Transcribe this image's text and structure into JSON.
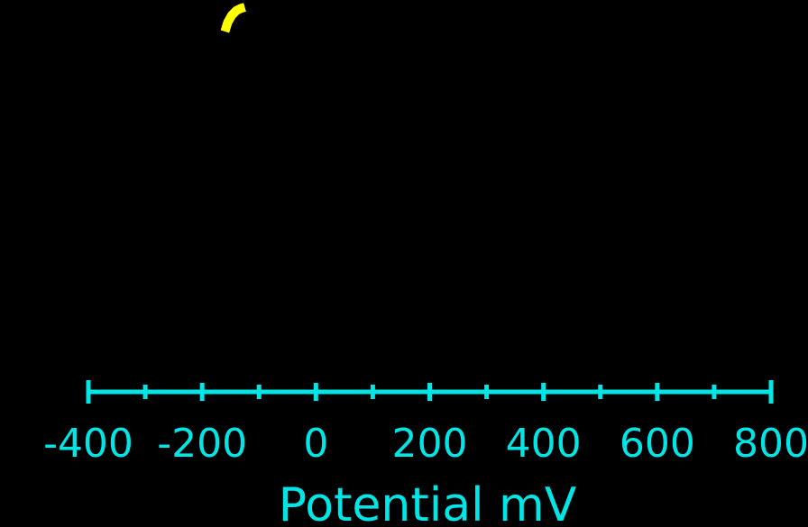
{
  "chart_data": {
    "type": "line",
    "title": "",
    "xlabel": "Potential mV",
    "ylabel": "",
    "xlim": [
      -400,
      800
    ],
    "x_major_ticks": [
      -400,
      -200,
      0,
      200,
      400,
      600,
      800
    ],
    "x_tick_labels": [
      "-400",
      "-200",
      "0",
      "200",
      "400",
      "600",
      "800"
    ],
    "x_minor_ticks": [
      -300,
      -100,
      100,
      300,
      500,
      700
    ],
    "grid": false,
    "legend": "none",
    "series": [
      {
        "color": "#ffff00",
        "points": [
          {
            "x": -160,
            "y": 0.0
          },
          {
            "x": -155,
            "y": 0.08
          },
          {
            "x": -148,
            "y": 0.14
          },
          {
            "x": -140,
            "y": 0.18
          },
          {
            "x": -132,
            "y": 0.2
          },
          {
            "x": -125,
            "y": 0.21
          }
        ]
      }
    ],
    "axis_color": "#00e5e5"
  }
}
